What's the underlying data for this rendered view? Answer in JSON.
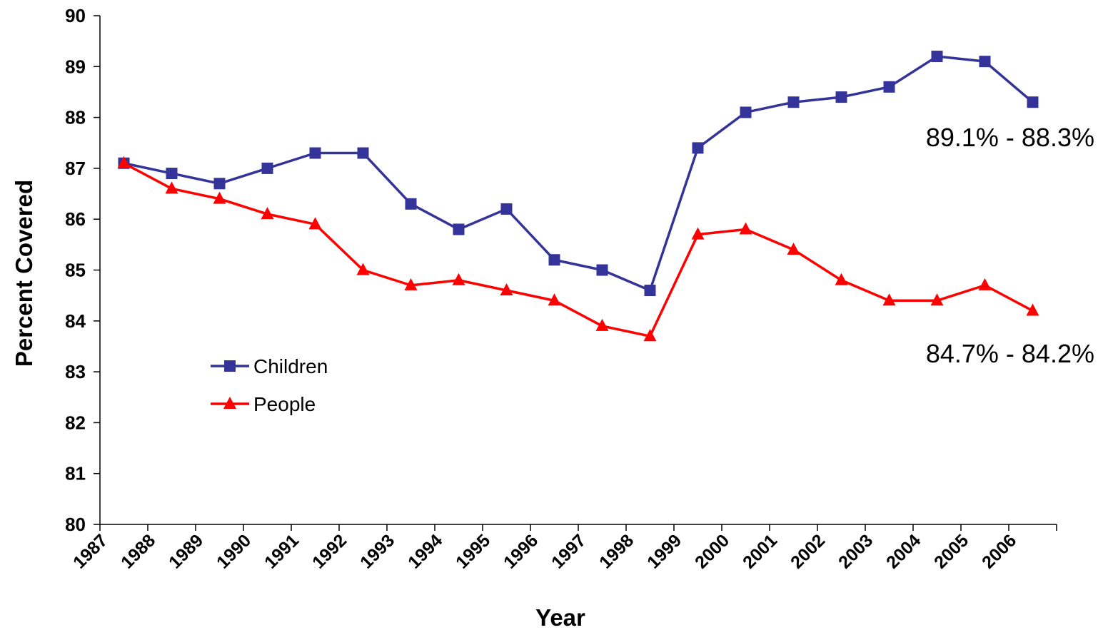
{
  "chart_data": {
    "type": "line",
    "title": "",
    "xlabel": "Year",
    "ylabel": "Percent Covered",
    "categories": [
      "1987",
      "1988",
      "1989",
      "1990",
      "1991",
      "1992",
      "1993",
      "1994",
      "1995",
      "1996",
      "1997",
      "1998",
      "1999",
      "2000",
      "2001",
      "2002",
      "2003",
      "2004",
      "2005",
      "2006"
    ],
    "ylim": [
      80,
      90
    ],
    "yticks": [
      80,
      81,
      82,
      83,
      84,
      85,
      86,
      87,
      88,
      89,
      90
    ],
    "grid": false,
    "legend_position": "left",
    "series": [
      {
        "name": "Children",
        "color": "#333399",
        "marker": "square",
        "values": [
          87.1,
          86.9,
          86.7,
          87.0,
          87.3,
          87.3,
          86.3,
          85.8,
          86.2,
          85.2,
          85.0,
          84.6,
          87.4,
          88.1,
          88.3,
          88.4,
          88.6,
          89.2,
          89.1,
          88.3
        ]
      },
      {
        "name": "People",
        "color": "#ff0000",
        "marker": "triangle",
        "values": [
          87.1,
          86.6,
          86.4,
          86.1,
          85.9,
          85.0,
          84.7,
          84.8,
          84.6,
          84.4,
          83.9,
          83.7,
          85.7,
          85.8,
          85.4,
          84.8,
          84.4,
          84.4,
          84.7,
          84.2
        ]
      }
    ],
    "annotations": [
      {
        "text": "89.1% - 88.3%",
        "series": "Children"
      },
      {
        "text": "84.7% - 84.2%",
        "series": "People"
      }
    ]
  }
}
